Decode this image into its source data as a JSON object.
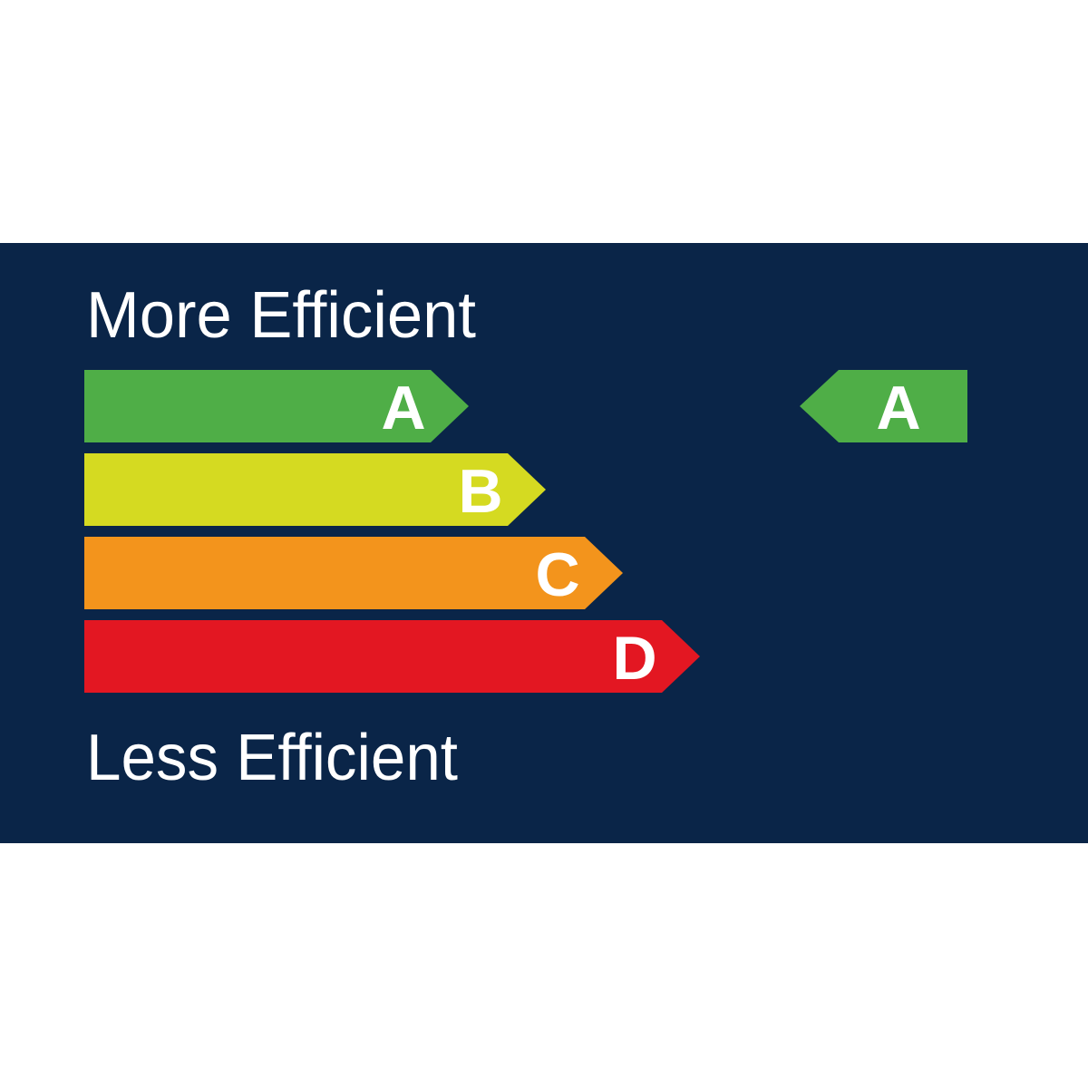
{
  "colors": {
    "background": "#0a2548",
    "page": "#ffffff",
    "text": "#ffffff"
  },
  "top_label": "More Efficient",
  "bottom_label": "Less Efficient",
  "bars": [
    {
      "letter": "A",
      "color": "#4fae47"
    },
    {
      "letter": "B",
      "color": "#d5da21"
    },
    {
      "letter": "C",
      "color": "#f3941c"
    },
    {
      "letter": "D",
      "color": "#e31722"
    }
  ],
  "rating": {
    "letter": "A",
    "color": "#4fae47"
  }
}
